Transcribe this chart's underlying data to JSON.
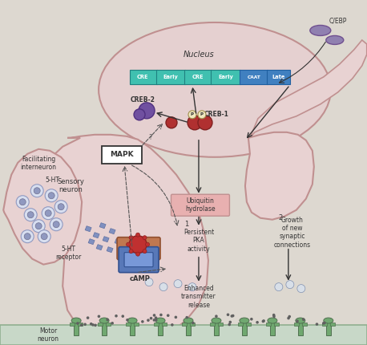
{
  "bg_color": "#ddd8d0",
  "nucleus_color": "#e5d0d0",
  "nucleus_border": "#c09090",
  "sensory_neuron_color": "#e8d2d2",
  "sensory_neuron_border": "#c09090",
  "facilitating_color": "#e8d2d2",
  "facilitating_border": "#c09090",
  "motor_neuron_color": "#c8d8c8",
  "motor_neuron_border": "#90b090",
  "cre_color": "#40c0b0",
  "early_color": "#40c0b0",
  "caat_color": "#4080c0",
  "late_color": "#4080c0",
  "mapk_box_color": "#ffffff",
  "ubiquitin_box_color": "#e8b0b0",
  "labels": {
    "nucleus": "Nucleus",
    "sensory_neuron": "Sensory\nneuron",
    "facilitating": "Facilitating\ninterneuron",
    "motor_neuron": "Motor\nneuron",
    "creb2": "CREB-2",
    "creb1": "CREB-1",
    "mapk": "MAPK",
    "camp": "cAMP",
    "ubiquitin": "Ubiquitin\nhydrolase",
    "persistent_pka": "Persistent\nPKA\nactivity",
    "enhanced": "Enhanced\ntransmitter\nrelease",
    "growth": "Growth\nof new\nsynaptic\nconnections",
    "5ht": "5-HT",
    "5ht_receptor": "5-HT\nreceptor",
    "cebp": "C/EBP",
    "p1": "P",
    "p2": "P",
    "label1": "1",
    "label2": "2"
  }
}
